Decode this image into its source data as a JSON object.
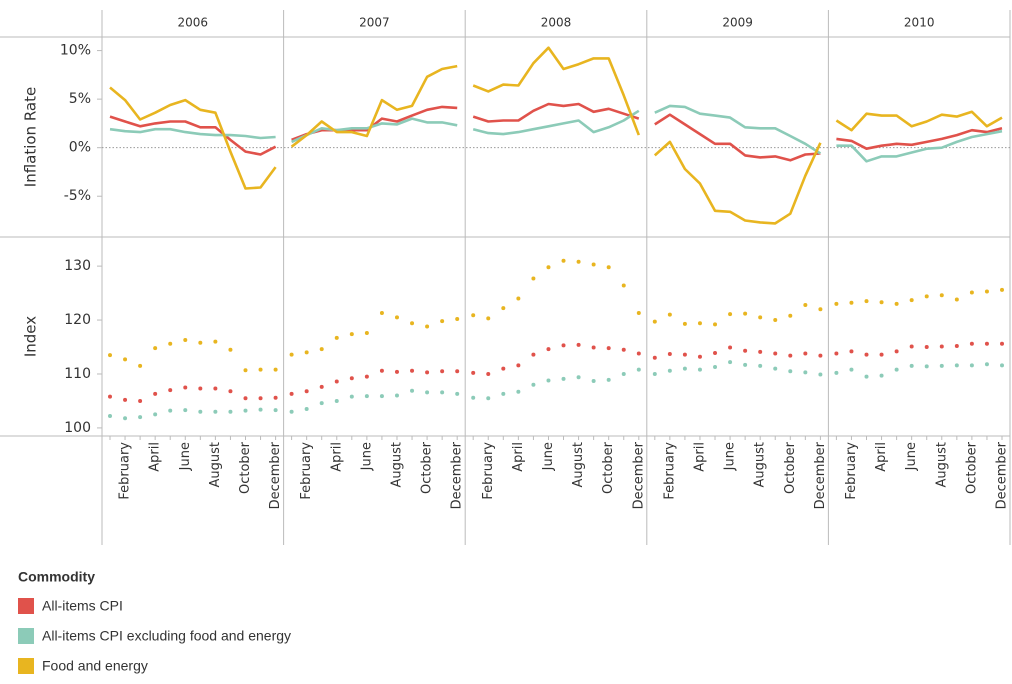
{
  "chart_data": {
    "type": "facet",
    "facets": [
      "2006",
      "2007",
      "2008",
      "2009",
      "2010"
    ],
    "categories": [
      null,
      "February",
      null,
      "April",
      null,
      "June",
      null,
      "August",
      null,
      "October",
      null,
      "December"
    ],
    "legend_title": "Commodity",
    "series": [
      {
        "name": "All-items CPI",
        "color": "#e0524b"
      },
      {
        "name": "All-items CPI excluding food and energy",
        "color": "#8ccbb8"
      },
      {
        "name": "Food and energy",
        "color": "#e8b520"
      }
    ],
    "panels": [
      {
        "type": "line",
        "ylabel": "Inflation Rate",
        "ylim": [
          -9.2,
          11.4
        ],
        "yticks": [
          {
            "value": -5,
            "label": "-5%"
          },
          {
            "value": 0,
            "label": "0%"
          },
          {
            "value": 5,
            "label": "5%"
          },
          {
            "value": 10,
            "label": "10%"
          }
        ],
        "hline": 0,
        "series": [
          {
            "values": [
              [
                3.2,
                2.7,
                2.2,
                2.5,
                2.7,
                2.7,
                2.1,
                2.1,
                0.8,
                -0.4,
                -0.7,
                0.1
              ],
              [
                0.8,
                1.4,
                1.8,
                1.8,
                1.8,
                1.8,
                3.0,
                2.7,
                3.3,
                3.9,
                4.2,
                4.1
              ],
              [
                3.2,
                2.7,
                2.8,
                2.8,
                3.8,
                4.5,
                4.3,
                4.5,
                3.7,
                4.0,
                3.5,
                3.0
              ],
              [
                2.4,
                3.4,
                2.4,
                1.4,
                0.4,
                0.4,
                -0.8,
                -1.0,
                -0.9,
                -1.3,
                -0.7,
                -0.6
              ],
              [
                0.9,
                0.7,
                -0.1,
                0.2,
                0.4,
                0.3,
                0.6,
                0.9,
                1.3,
                1.8,
                1.6,
                2.0
              ]
            ]
          },
          {
            "values": [
              [
                1.9,
                1.7,
                1.6,
                1.9,
                1.9,
                1.6,
                1.4,
                1.3,
                1.3,
                1.2,
                1.0,
                1.1
              ],
              [
                0.6,
                1.3,
                2.0,
                1.8,
                2.0,
                2.0,
                2.5,
                2.4,
                3.0,
                2.6,
                2.6,
                2.3
              ],
              [
                1.9,
                1.5,
                1.4,
                1.6,
                1.9,
                2.2,
                2.5,
                2.8,
                1.6,
                2.1,
                2.8,
                3.8
              ],
              [
                3.6,
                4.3,
                4.2,
                3.5,
                3.3,
                3.1,
                2.1,
                2.0,
                2.0,
                1.2,
                0.4,
                -0.6
              ],
              [
                0.2,
                0.2,
                -1.4,
                -0.9,
                -0.9,
                -0.5,
                -0.1,
                0.0,
                0.6,
                1.1,
                1.4,
                1.7
              ]
            ]
          },
          {
            "values": [
              [
                6.2,
                4.9,
                2.9,
                3.6,
                4.4,
                4.9,
                3.9,
                3.6,
                -0.4,
                -4.2,
                -4.1,
                -2.0
              ],
              [
                0.1,
                1.3,
                2.7,
                1.6,
                1.6,
                1.2,
                4.9,
                3.9,
                4.3,
                7.3,
                8.1,
                8.4
              ],
              [
                6.4,
                5.8,
                6.5,
                6.4,
                8.7,
                10.3,
                8.1,
                8.6,
                9.2,
                9.2,
                5.4,
                1.3
              ],
              [
                -0.8,
                0.6,
                -2.2,
                -3.7,
                -6.5,
                -6.6,
                -7.5,
                -7.7,
                -7.8,
                -6.8,
                -2.9,
                0.5
              ],
              [
                2.8,
                1.8,
                3.5,
                3.3,
                3.3,
                2.2,
                2.7,
                3.4,
                3.2,
                3.7,
                2.2,
                3.1
              ]
            ]
          }
        ]
      },
      {
        "type": "dot",
        "ylabel": "Index",
        "ylim": [
          98.5,
          135.4
        ],
        "yticks": [
          100,
          110,
          120,
          130
        ],
        "series": [
          {
            "values": [
              [
                105.8,
                105.2,
                105.0,
                106.3,
                107.0,
                107.5,
                107.3,
                107.3,
                106.8,
                105.5,
                105.5,
                105.6
              ],
              [
                106.3,
                106.8,
                107.6,
                108.6,
                109.2,
                109.5,
                110.6,
                110.4,
                110.6,
                110.3,
                110.5,
                110.5
              ],
              [
                110.2,
                110.0,
                111.0,
                111.6,
                113.6,
                114.6,
                115.3,
                115.4,
                114.9,
                114.8,
                114.5,
                113.8
              ],
              [
                113.0,
                113.7,
                113.6,
                113.2,
                113.9,
                114.9,
                114.3,
                114.1,
                113.8,
                113.4,
                113.8,
                113.4
              ],
              [
                113.8,
                114.2,
                113.6,
                113.6,
                114.2,
                115.1,
                115.0,
                115.1,
                115.2,
                115.6,
                115.6,
                115.6
              ]
            ]
          },
          {
            "values": [
              [
                102.2,
                101.8,
                102.0,
                102.5,
                103.2,
                103.3,
                103.0,
                103.0,
                103.0,
                103.2,
                103.4,
                103.3
              ],
              [
                103.0,
                103.5,
                104.6,
                105.0,
                105.8,
                105.9,
                105.9,
                106.0,
                106.9,
                106.6,
                106.6,
                106.3
              ],
              [
                105.6,
                105.5,
                106.3,
                106.7,
                108.0,
                108.8,
                109.1,
                109.4,
                108.7,
                108.9,
                110.0,
                110.8
              ],
              [
                110.0,
                110.6,
                111.0,
                110.8,
                111.3,
                112.2,
                111.7,
                111.5,
                111.0,
                110.5,
                110.3,
                109.9
              ],
              [
                110.2,
                110.8,
                109.5,
                109.7,
                110.8,
                111.5,
                111.4,
                111.5,
                111.6,
                111.6,
                111.8,
                111.6
              ]
            ]
          },
          {
            "values": [
              [
                113.5,
                112.7,
                111.5,
                114.8,
                115.6,
                116.3,
                115.8,
                116.0,
                114.5,
                110.7,
                110.8,
                110.8
              ],
              [
                113.6,
                114.0,
                114.6,
                116.7,
                117.4,
                117.6,
                121.3,
                120.5,
                119.4,
                118.8,
                119.8,
                120.2
              ],
              [
                120.9,
                120.3,
                122.2,
                124.0,
                127.7,
                129.8,
                131.0,
                130.8,
                130.3,
                129.8,
                126.4,
                121.3
              ],
              [
                119.7,
                121.0,
                119.3,
                119.4,
                119.2,
                121.1,
                121.2,
                120.5,
                120.0,
                120.8,
                122.8,
                122.0
              ],
              [
                123.0,
                123.2,
                123.5,
                123.3,
                123.0,
                123.7,
                124.4,
                124.6,
                123.8,
                125.1,
                125.3,
                125.6
              ]
            ]
          }
        ]
      }
    ]
  }
}
